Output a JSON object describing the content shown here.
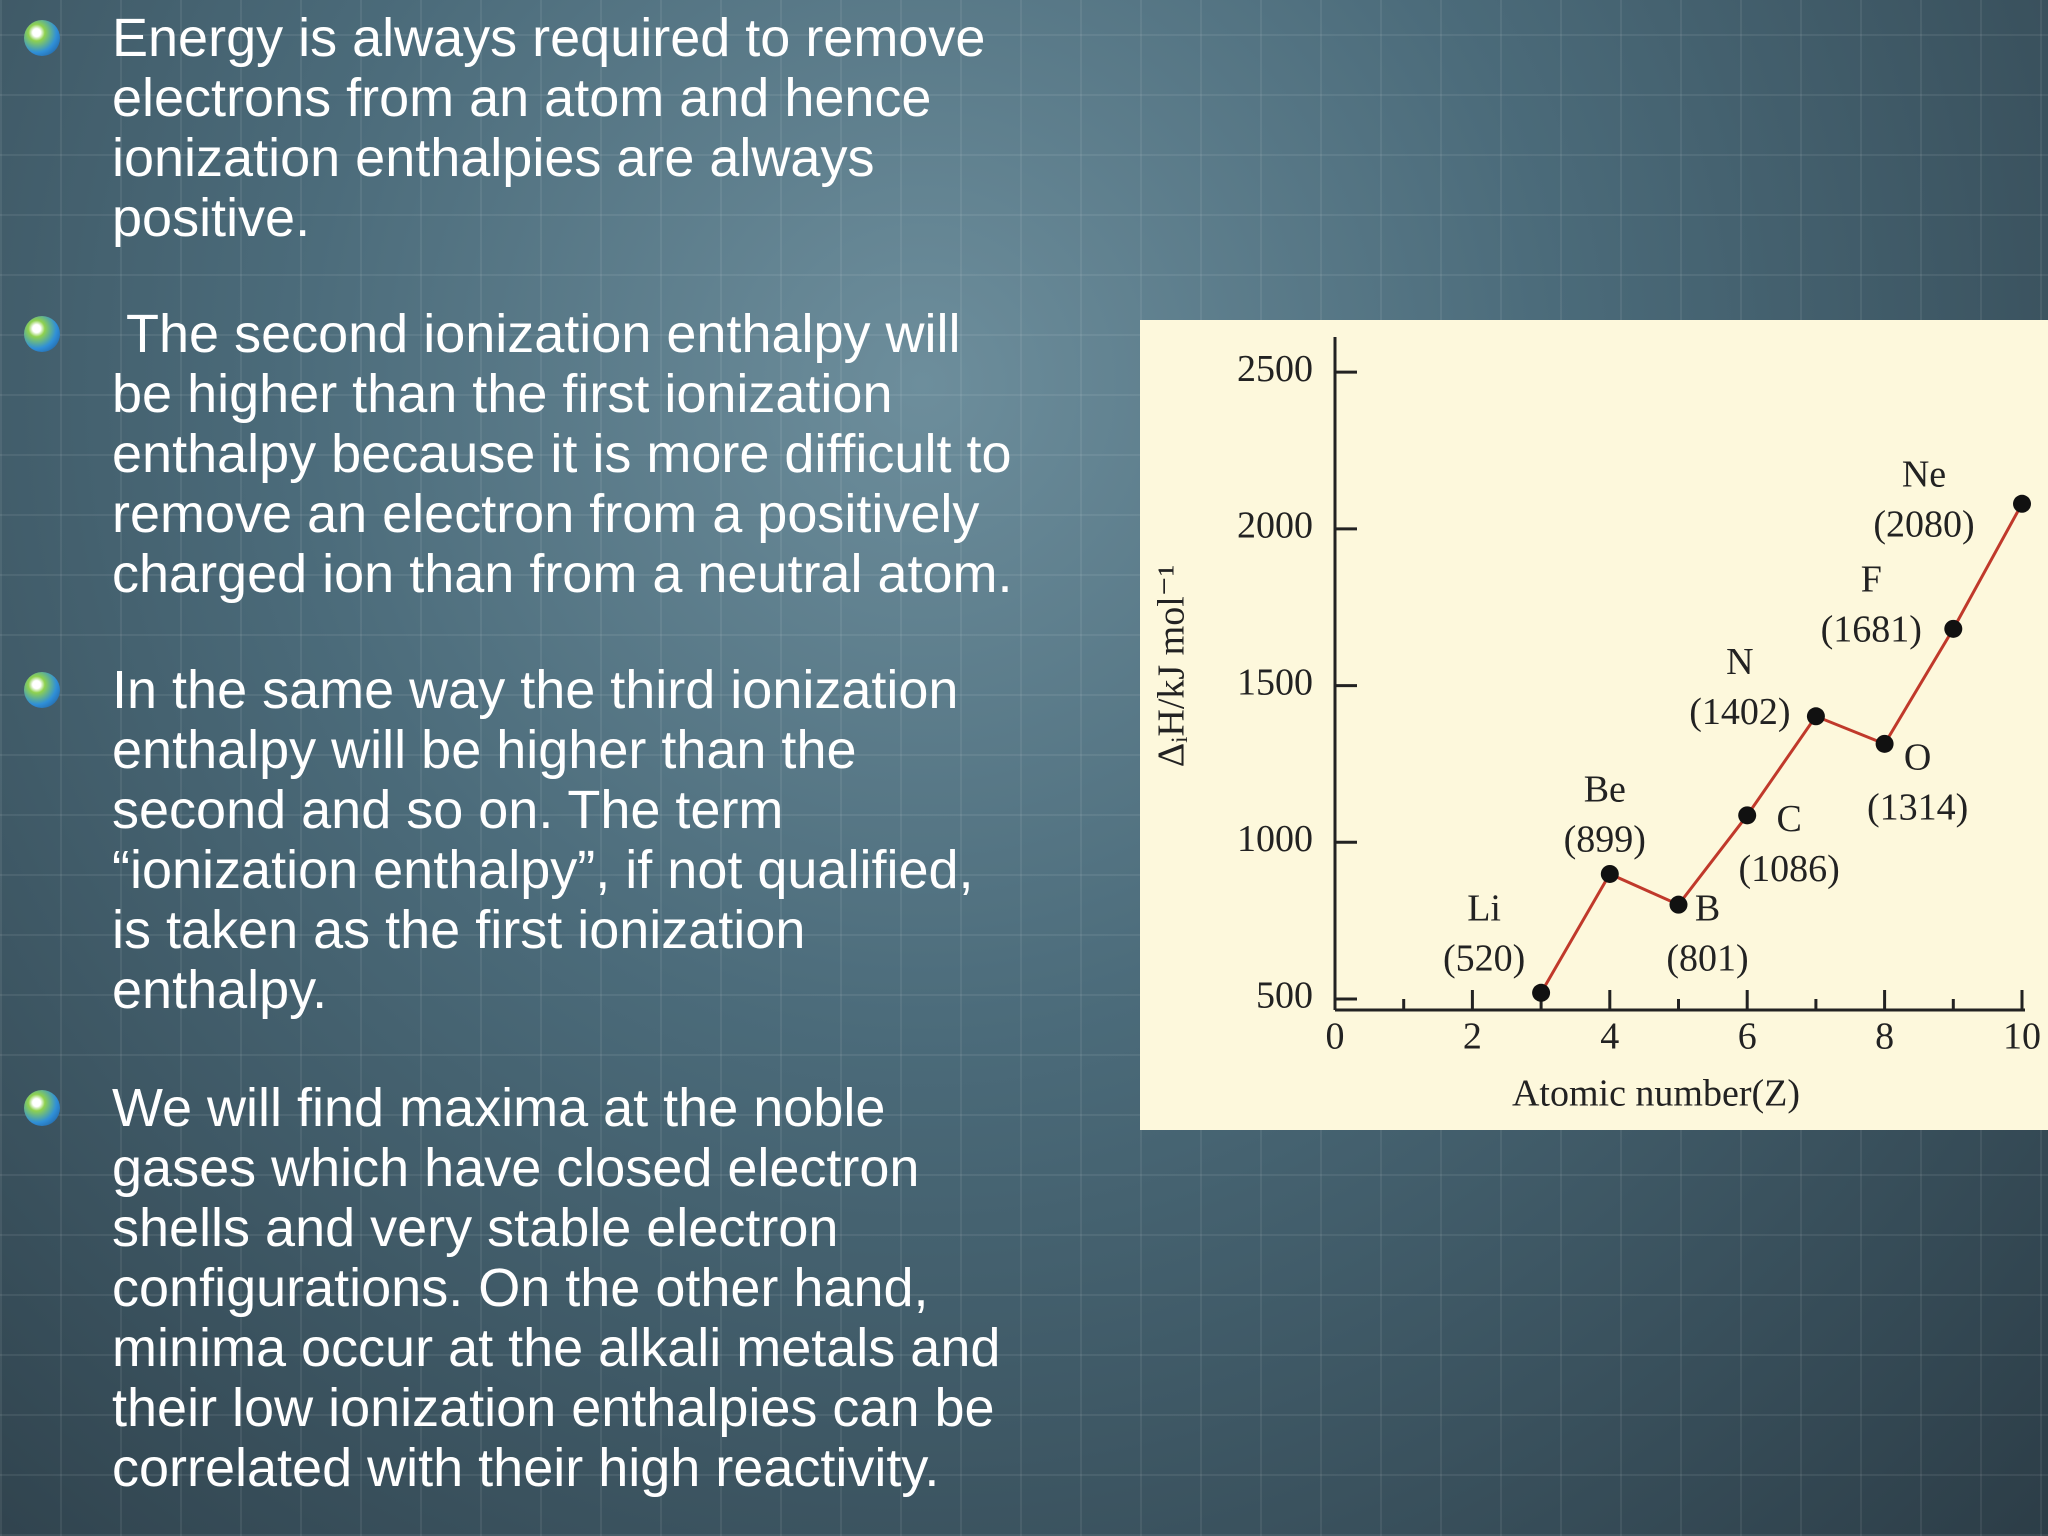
{
  "bullets": [
    [
      "Energy is always required to remove",
      "electrons from an atom and hence",
      "ionization enthalpies are always",
      "positive."
    ],
    [
      " The second ionization enthalpy will",
      "be higher than the first ionization",
      "enthalpy because it is more difficult to",
      "remove an electron from a positively",
      "charged ion than from a neutral atom."
    ],
    [
      "In the same way the third ionization",
      "enthalpy will be higher than the",
      "second and so on. The term",
      "“ionization enthalpy”, if not qualified,",
      "is taken as the first ionization",
      "enthalpy."
    ],
    [
      "We will find maxima at the noble",
      "gases which have closed electron",
      "shells and very stable electron",
      "configurations. On the other hand,",
      "minima occur at the alkali metals and",
      "their low ionization enthalpies can be",
      "correlated with their high reactivity."
    ]
  ],
  "chart_data": {
    "type": "line",
    "x_label": "Atomic number(Z)",
    "y_label": "ΔᵢH/kJ mol⁻¹",
    "x": [
      3,
      4,
      5,
      6,
      7,
      8,
      9,
      10
    ],
    "point_labels": [
      "Li",
      "Be",
      "B",
      "C",
      "N",
      "O",
      "F",
      "Ne"
    ],
    "values": [
      520,
      899,
      801,
      1086,
      1402,
      1314,
      1681,
      2080
    ],
    "value_labels": [
      "(520)",
      "(899)",
      "(801)",
      "(1086)",
      "(1402)",
      "(1314)",
      "(1681)",
      "(2080)"
    ],
    "color": "#c0392b",
    "xlim": [
      0,
      10
    ],
    "xticks": [
      0,
      2,
      4,
      6,
      8,
      10
    ],
    "xminorticks": [
      1,
      3,
      5,
      7,
      9
    ],
    "ylim": [
      465,
      2612
    ],
    "yticks": [
      500,
      1000,
      1500,
      2000,
      2500
    ]
  }
}
